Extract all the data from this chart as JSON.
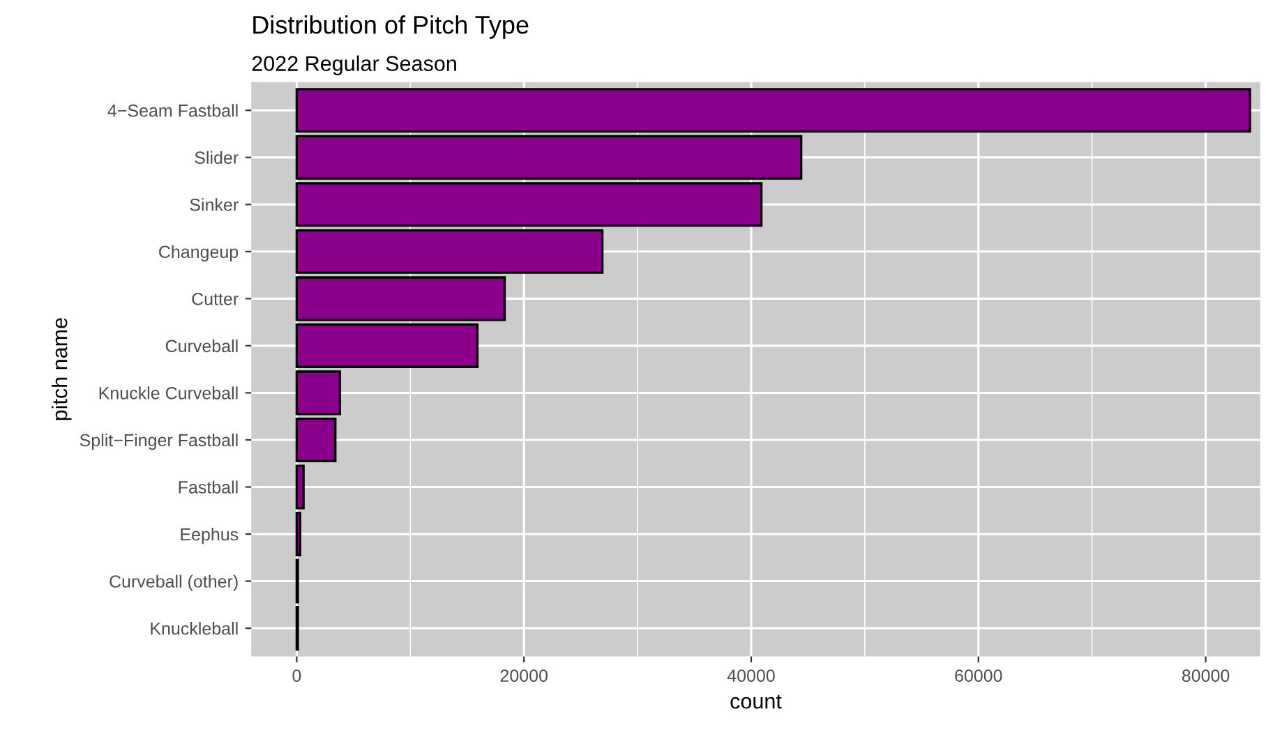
{
  "chart_data": {
    "type": "bar",
    "orientation": "horizontal",
    "title": "Distribution of Pitch Type",
    "subtitle": "2022 Regular Season",
    "xlabel": "count",
    "ylabel": "pitch name",
    "categories": [
      "4−Seam Fastball",
      "Slider",
      "Sinker",
      "Changeup",
      "Cutter",
      "Curveball",
      "Knuckle Curveball",
      "Split−Finger Fastball",
      "Fastball",
      "Eephus",
      "Curveball (other)",
      "Knuckleball"
    ],
    "values": [
      83900,
      44400,
      40900,
      26900,
      18300,
      15900,
      3800,
      3400,
      600,
      300,
      100,
      100
    ],
    "color": "#8b008b",
    "xlim": [
      -4000,
      84800
    ],
    "xticks": [
      0,
      20000,
      40000,
      60000,
      80000
    ],
    "grid": true,
    "legend": false
  }
}
